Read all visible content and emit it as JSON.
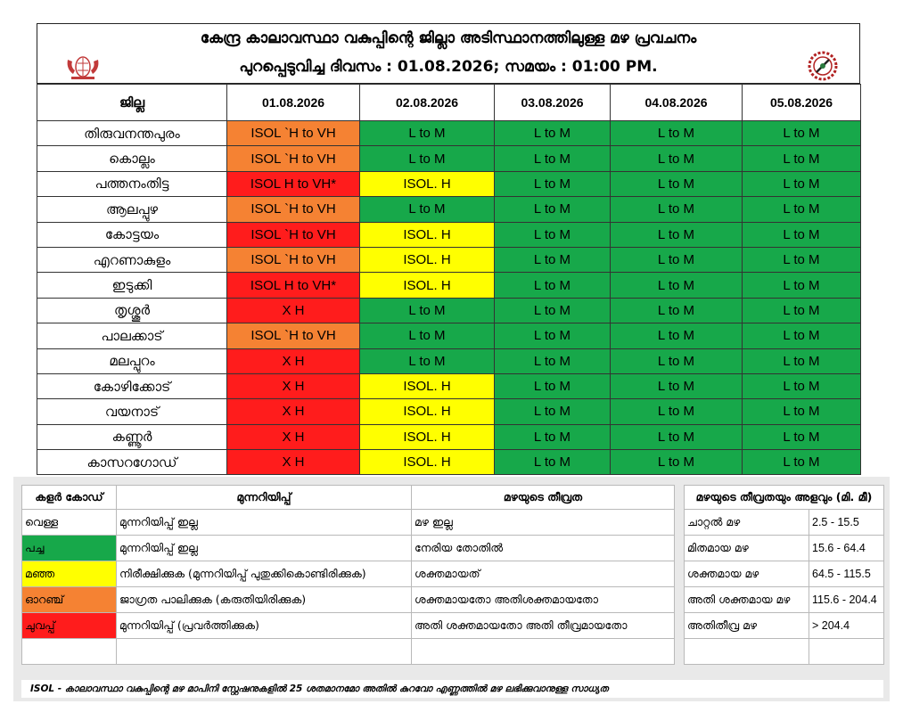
{
  "header": {
    "title_line1": "കേന്ദ്ര കാലാവസ്ഥാ വകുപ്പിന്റെ ജില്ലാ അടിസ്ഥാനത്തിലുള്ള മഴ പ്രവചനം",
    "title_line2": "പുറപ്പെടുവിച്ച ദിവസം : 01.08.2026; സമയം : 01:00 PM."
  },
  "forecast": {
    "district_header": "ജില്ല",
    "dates": [
      "01.08.2026",
      "02.08.2026",
      "03.08.2026",
      "04.08.2026",
      "05.08.2026"
    ],
    "rows": [
      {
        "district": "തിരുവനന്തപുരം",
        "cells": [
          {
            "text": "ISOL `H to VH",
            "color": "orange"
          },
          {
            "text": "L to M",
            "color": "green"
          },
          {
            "text": "L to M",
            "color": "green"
          },
          {
            "text": "L to M",
            "color": "green"
          },
          {
            "text": "L to M",
            "color": "green"
          }
        ]
      },
      {
        "district": "കൊല്ലം",
        "cells": [
          {
            "text": "ISOL `H to VH",
            "color": "orange"
          },
          {
            "text": "L to M",
            "color": "green"
          },
          {
            "text": "L to M",
            "color": "green"
          },
          {
            "text": "L to M",
            "color": "green"
          },
          {
            "text": "L to M",
            "color": "green"
          }
        ]
      },
      {
        "district": "പത്തനംതിട്ട",
        "cells": [
          {
            "text": "ISOL H to VH*",
            "color": "red"
          },
          {
            "text": "ISOL. H",
            "color": "yellow"
          },
          {
            "text": "L to M",
            "color": "green"
          },
          {
            "text": "L to M",
            "color": "green"
          },
          {
            "text": "L to M",
            "color": "green"
          }
        ]
      },
      {
        "district": "ആലപ്പുഴ",
        "cells": [
          {
            "text": "ISOL `H to VH",
            "color": "orange"
          },
          {
            "text": "L to M",
            "color": "green"
          },
          {
            "text": "L to M",
            "color": "green"
          },
          {
            "text": "L to M",
            "color": "green"
          },
          {
            "text": "L to M",
            "color": "green"
          }
        ]
      },
      {
        "district": "കോട്ടയം",
        "cells": [
          {
            "text": "ISOL `H to VH",
            "color": "red"
          },
          {
            "text": "ISOL. H",
            "color": "yellow"
          },
          {
            "text": "L to M",
            "color": "green"
          },
          {
            "text": "L to M",
            "color": "green"
          },
          {
            "text": "L to M",
            "color": "green"
          }
        ]
      },
      {
        "district": "എറണാകുളം",
        "cells": [
          {
            "text": "ISOL `H to VH",
            "color": "orange"
          },
          {
            "text": "ISOL. H",
            "color": "yellow"
          },
          {
            "text": "L to M",
            "color": "green"
          },
          {
            "text": "L to M",
            "color": "green"
          },
          {
            "text": "L to M",
            "color": "green"
          }
        ]
      },
      {
        "district": "ഇടുക്കി",
        "cells": [
          {
            "text": "ISOL H to VH*",
            "color": "red"
          },
          {
            "text": "ISOL. H",
            "color": "yellow"
          },
          {
            "text": "L to M",
            "color": "green"
          },
          {
            "text": "L to M",
            "color": "green"
          },
          {
            "text": "L to M",
            "color": "green"
          }
        ]
      },
      {
        "district": "തൃശ്ശൂർ",
        "cells": [
          {
            "text": "X H",
            "color": "red"
          },
          {
            "text": "L to M",
            "color": "green"
          },
          {
            "text": "L to M",
            "color": "green"
          },
          {
            "text": "L to M",
            "color": "green"
          },
          {
            "text": "L to M",
            "color": "green"
          }
        ]
      },
      {
        "district": "പാലക്കാട്",
        "cells": [
          {
            "text": "ISOL `H to VH",
            "color": "orange"
          },
          {
            "text": "L to M",
            "color": "green"
          },
          {
            "text": "L to M",
            "color": "green"
          },
          {
            "text": "L to M",
            "color": "green"
          },
          {
            "text": "L to M",
            "color": "green"
          }
        ]
      },
      {
        "district": "മലപ്പുറം",
        "cells": [
          {
            "text": "X H",
            "color": "red"
          },
          {
            "text": "L to M",
            "color": "green"
          },
          {
            "text": "L to M",
            "color": "green"
          },
          {
            "text": "L to M",
            "color": "green"
          },
          {
            "text": "L to M",
            "color": "green"
          }
        ]
      },
      {
        "district": "കോഴിക്കോട്",
        "cells": [
          {
            "text": "X H",
            "color": "red"
          },
          {
            "text": "ISOL. H",
            "color": "yellow"
          },
          {
            "text": "L to M",
            "color": "green"
          },
          {
            "text": "L to M",
            "color": "green"
          },
          {
            "text": "L to M",
            "color": "green"
          }
        ]
      },
      {
        "district": "വയനാട്",
        "cells": [
          {
            "text": "X H",
            "color": "red"
          },
          {
            "text": "ISOL. H",
            "color": "yellow"
          },
          {
            "text": "L to M",
            "color": "green"
          },
          {
            "text": "L to M",
            "color": "green"
          },
          {
            "text": "L to M",
            "color": "green"
          }
        ]
      },
      {
        "district": "കണ്ണൂർ",
        "cells": [
          {
            "text": "X H",
            "color": "red"
          },
          {
            "text": "ISOL. H",
            "color": "yellow"
          },
          {
            "text": "L to M",
            "color": "green"
          },
          {
            "text": "L to M",
            "color": "green"
          },
          {
            "text": "L to M",
            "color": "green"
          }
        ]
      },
      {
        "district": "കാസറഗോഡ്",
        "cells": [
          {
            "text": "X H",
            "color": "red"
          },
          {
            "text": "ISOL. H",
            "color": "yellow"
          },
          {
            "text": "L to M",
            "color": "green"
          },
          {
            "text": "L to M",
            "color": "green"
          },
          {
            "text": "L to M",
            "color": "green"
          }
        ]
      }
    ]
  },
  "legend": {
    "headers": [
      "കളർ കോഡ്",
      "മുന്നറിയിപ്പ്",
      "മഴയുടെ തീവ്രത"
    ],
    "rows": [
      {
        "color": "white",
        "code": "വെള്ള",
        "warning": "മുന്നറിയിപ്പ് ഇല്ല",
        "intensity": "മഴ ഇല്ല"
      },
      {
        "color": "green",
        "code": "പച്ച",
        "warning": "മുന്നറിയിപ്പ് ഇല്ല",
        "intensity": "നേരിയ തോതിൽ"
      },
      {
        "color": "yellow",
        "code": "മഞ്ഞ",
        "warning": "നിരീക്ഷിക്കുക (മുന്നറിയിപ്പ് പുതുക്കികൊണ്ടിരിക്കുക)",
        "intensity": "ശക്തമായത്"
      },
      {
        "color": "orange",
        "code": "ഓറഞ്ച്",
        "warning": "ജാഗ്രത പാലിക്കുക (കരുതിയിരിക്കുക)",
        "intensity": "ശക്തമായതോ അതിശക്തമായതോ"
      },
      {
        "color": "red",
        "code": "ചുവപ്പ്",
        "warning": "മുന്നറിയിപ്പ് (പ്രവർത്തിക്കുക)",
        "intensity": "അതി ശക്തമായതോ അതി തീവ്രമായതോ"
      }
    ]
  },
  "rain_scale": {
    "header": "മഴയുടെ തീവ്രതയും അളവും (മി. മീ)",
    "rows": [
      {
        "label": "ചാറ്റൽ മഴ",
        "range": "2.5 - 15.5"
      },
      {
        "label": "മിതമായ മഴ",
        "range": "15.6 - 64.4"
      },
      {
        "label": "ശക്തമായ മഴ",
        "range": "64.5 - 115.5"
      },
      {
        "label": "അതി ശക്തമായ മഴ",
        "range": "115.6 - 204.4"
      },
      {
        "label": "അതിതീവ്ര മഴ",
        "range": ">  204.4"
      }
    ]
  },
  "footnote": "ISOL - കാലാവസ്ഥാ വകുപ്പിന്റെ മഴ മാപിനി സ്റ്റേഷനുകളിൽ 25 ശതമാനമോ അതിൽ കുറവോ എണ്ണത്തിൽ മഴ ലഭിക്കുവാനുള്ള സാധ്യത",
  "colors": {
    "orange": "#F58233",
    "red": "#FF1C1C",
    "yellow": "#FFFF00",
    "green": "#17A84A",
    "white": "#FFFFFF"
  },
  "icons": {
    "left_emblem": "kerala-state-emblem-icon",
    "right_emblem": "imd-logo-icon"
  }
}
